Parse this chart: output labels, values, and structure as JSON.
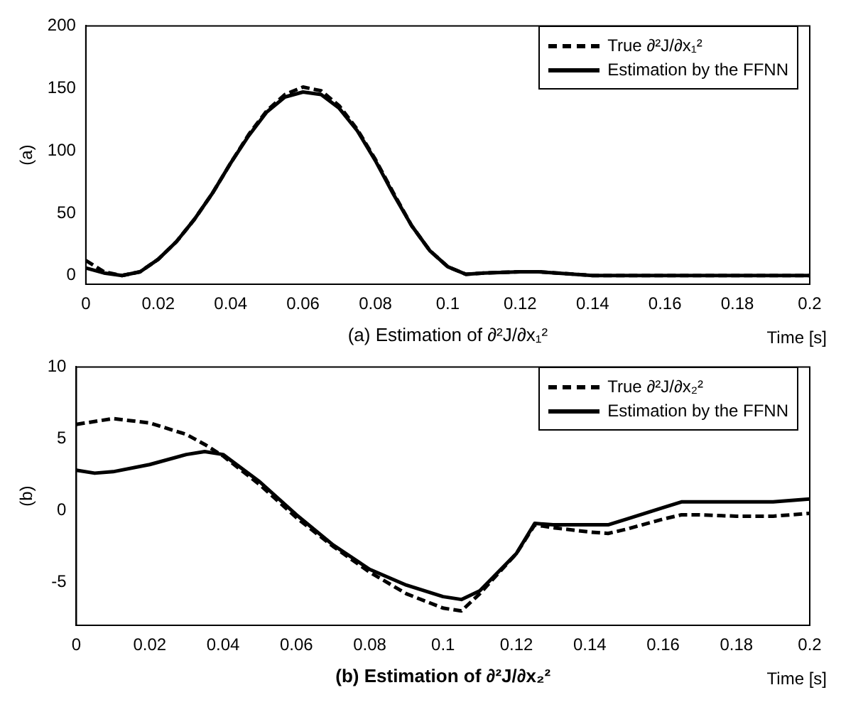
{
  "chart_data": [
    {
      "type": "line",
      "xlabel": "(a) Estimation of ∂²J/∂x₁²",
      "ylabel": "(a)",
      "annotations": [
        "Time [s]"
      ],
      "legend": "top right",
      "grid": false,
      "marker": "none",
      "xlim": [
        0,
        0.2
      ],
      "xticks": [
        0,
        0.02,
        0.04,
        0.06,
        0.08,
        0.1,
        0.12,
        0.14,
        0.16,
        0.18,
        0.2
      ],
      "ylim": [
        -7,
        200
      ],
      "yticks": [
        0,
        50,
        100,
        150,
        200
      ],
      "series": [
        {
          "name": "True ∂²J/∂x₁²",
          "color": "#000000",
          "line_style": "dashed",
          "x": [
            0,
            0.005,
            0.01,
            0.015,
            0.02,
            0.025,
            0.03,
            0.035,
            0.04,
            0.045,
            0.05,
            0.055,
            0.06,
            0.065,
            0.07,
            0.075,
            0.08,
            0.085,
            0.09,
            0.095,
            0.1,
            0.105,
            0.11,
            0.12,
            0.125,
            0.13,
            0.14,
            0.2
          ],
          "values": [
            12,
            3,
            0,
            3,
            13,
            27,
            45,
            66,
            90,
            113,
            132,
            145,
            151,
            148,
            136,
            117,
            93,
            66,
            40,
            20,
            7,
            1,
            2,
            3,
            3,
            2,
            0,
            0
          ]
        },
        {
          "name": "Estimation by the FFNN",
          "color": "#000000",
          "line_style": "solid",
          "x": [
            0,
            0.005,
            0.01,
            0.015,
            0.02,
            0.025,
            0.03,
            0.035,
            0.04,
            0.045,
            0.05,
            0.055,
            0.06,
            0.065,
            0.07,
            0.075,
            0.08,
            0.085,
            0.09,
            0.095,
            0.1,
            0.105,
            0.11,
            0.12,
            0.125,
            0.13,
            0.14,
            0.2
          ],
          "values": [
            6,
            2,
            0,
            3,
            13,
            27,
            45,
            66,
            90,
            112,
            131,
            143,
            147,
            145,
            134,
            116,
            92,
            65,
            40,
            20,
            7,
            1,
            2,
            3,
            3,
            2,
            0,
            0
          ]
        }
      ]
    },
    {
      "type": "line",
      "xlabel": "(b) Estimation of ∂²J/∂x₂²",
      "ylabel": "(b)",
      "annotations": [
        "Time [s]"
      ],
      "legend": "top right",
      "grid": false,
      "marker": "none",
      "xlim": [
        0,
        0.2
      ],
      "xticks": [
        0,
        0.02,
        0.04,
        0.06,
        0.08,
        0.1,
        0.12,
        0.14,
        0.16,
        0.18,
        0.2
      ],
      "ylim": [
        -8,
        10
      ],
      "yticks": [
        -5,
        0,
        5,
        10
      ],
      "series": [
        {
          "name": "True ∂²J/∂x₂²",
          "color": "#000000",
          "line_style": "dashed",
          "x": [
            0,
            0.01,
            0.02,
            0.03,
            0.035,
            0.04,
            0.05,
            0.06,
            0.07,
            0.08,
            0.09,
            0.1,
            0.105,
            0.11,
            0.12,
            0.125,
            0.13,
            0.14,
            0.145,
            0.15,
            0.16,
            0.165,
            0.17,
            0.18,
            0.19,
            0.2
          ],
          "values": [
            6,
            6.4,
            6.1,
            5.3,
            4.6,
            3.8,
            1.8,
            -0.5,
            -2.5,
            -4.3,
            -5.8,
            -6.8,
            -7,
            -5.8,
            -3,
            -1,
            -1.2,
            -1.5,
            -1.6,
            -1.3,
            -0.6,
            -0.3,
            -0.3,
            -0.4,
            -0.4,
            -0.2
          ]
        },
        {
          "name": "Estimation by the FFNN",
          "color": "#000000",
          "line_style": "solid",
          "x": [
            0,
            0.005,
            0.01,
            0.02,
            0.03,
            0.035,
            0.04,
            0.05,
            0.06,
            0.07,
            0.08,
            0.09,
            0.1,
            0.105,
            0.11,
            0.12,
            0.125,
            0.13,
            0.145,
            0.15,
            0.16,
            0.165,
            0.17,
            0.19,
            0.2
          ],
          "values": [
            2.8,
            2.6,
            2.7,
            3.2,
            3.9,
            4.1,
            3.9,
            2,
            -0.3,
            -2.4,
            -4.1,
            -5.2,
            -6,
            -6.2,
            -5.6,
            -3,
            -0.9,
            -1,
            -1,
            -0.6,
            0.2,
            0.6,
            0.6,
            0.6,
            0.8
          ]
        }
      ]
    }
  ]
}
